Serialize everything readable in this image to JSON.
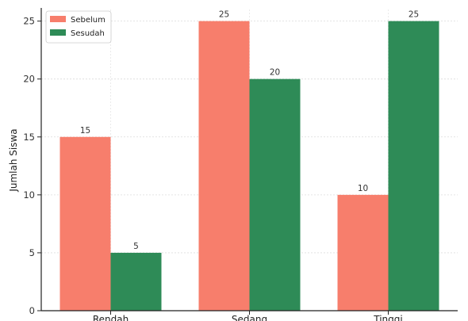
{
  "chart_data": {
    "type": "bar",
    "title": "",
    "xlabel": "",
    "ylabel": "Jumlah Siswa",
    "categories": [
      "Rendah",
      "Sedang",
      "Tinggi"
    ],
    "series": [
      {
        "name": "Sebelum",
        "values": [
          15,
          25,
          10
        ],
        "color": "#f77e6c"
      },
      {
        "name": "Sesudah",
        "values": [
          5,
          20,
          25
        ],
        "color": "#2e8b57"
      }
    ],
    "ylim": [
      0,
      26
    ],
    "yticks": [
      0,
      5,
      10,
      15,
      20,
      25
    ],
    "grid": true,
    "legend_position": "top-left",
    "data_labels": true
  }
}
